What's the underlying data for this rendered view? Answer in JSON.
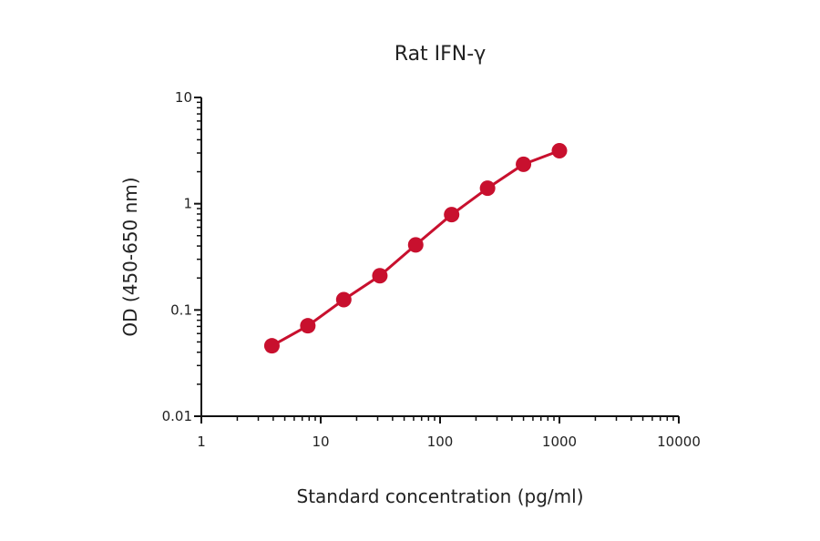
{
  "chart_data": {
    "type": "line",
    "title": "Rat IFN-γ",
    "xlabel": "Standard concentration (pg/ml)",
    "ylabel": "OD (450-650 nm)",
    "xscale": "log",
    "yscale": "log",
    "xlim": [
      1,
      10000
    ],
    "ylim": [
      0.01,
      10
    ],
    "xticks": [
      1,
      10,
      100,
      1000,
      10000
    ],
    "xtick_labels": [
      "1",
      "10",
      "100",
      "1000",
      "10000"
    ],
    "yticks": [
      0.01,
      0.1,
      1,
      10
    ],
    "ytick_labels": [
      "0.01",
      "0.1",
      "1",
      "10"
    ],
    "grid": false,
    "series": [
      {
        "color": "#c8102e",
        "marker": "circle",
        "x": [
          3.9,
          7.8,
          15.6,
          31.3,
          62.5,
          125,
          250,
          500,
          1000
        ],
        "y": [
          0.046,
          0.071,
          0.125,
          0.21,
          0.41,
          0.79,
          1.4,
          2.35,
          3.15
        ]
      }
    ]
  }
}
